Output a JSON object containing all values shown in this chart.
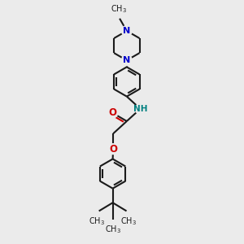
{
  "bg_color": "#ebebeb",
  "bond_color": "#1a1a1a",
  "N_color": "#0000cc",
  "O_color": "#cc0000",
  "NH_color": "#008080",
  "lw": 1.5,
  "figsize": [
    3.0,
    3.0
  ],
  "dpi": 100,
  "xlim": [
    -2.5,
    2.5
  ],
  "ylim": [
    -5.5,
    4.5
  ]
}
